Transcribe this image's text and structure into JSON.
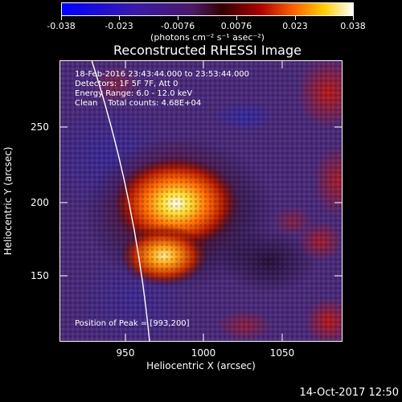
{
  "colorbar": {
    "ticks": [
      "-0.038",
      "-0.023",
      "-0.0076",
      "0.0076",
      "0.023",
      "0.038"
    ],
    "units": "(photons cm⁻² s⁻¹ asec⁻²)"
  },
  "title": "Reconstructed RHESSI Image",
  "annotations": {
    "time_range": "18-Feb-2016 23:43:44.000 to 23:53:44.000",
    "detectors": "Detectors: 1F 5F 7F, Att 0",
    "energy_range": "Energy Range: 6.0 - 12.0 keV",
    "clean": "Clean    Total counts: 4.68E+04",
    "peak_position": "Position of Peak = [993,200]"
  },
  "axes": {
    "xlabel": "Heliocentric X (arcsec)",
    "ylabel": "Heliocentric Y (arcsec)",
    "xticks": [
      "950",
      "1000",
      "1050"
    ],
    "yticks": [
      "250",
      "200",
      "150"
    ]
  },
  "timestamp": "14-Oct-2017 12:50",
  "colors": {
    "background": "#000000",
    "text": "#ffffff"
  }
}
